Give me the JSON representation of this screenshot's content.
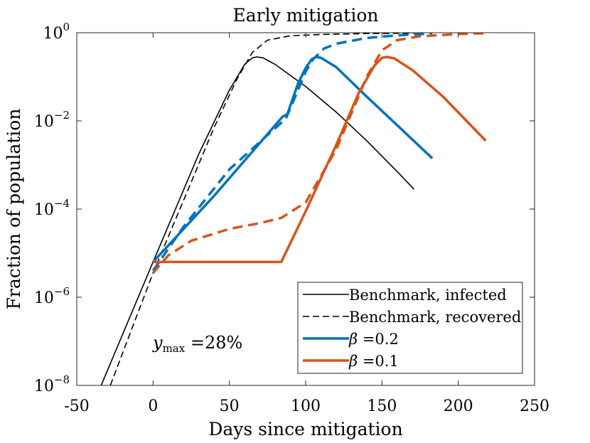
{
  "chart_data": {
    "type": "line",
    "title": "Early mitigation",
    "xlabel": "Days since mitigation",
    "ylabel": "Fraction of population",
    "xlim": [
      -50,
      250
    ],
    "ylim_log10": [
      -8,
      0
    ],
    "x_ticks": [
      -50,
      0,
      50,
      100,
      150,
      200,
      250
    ],
    "x_tick_labels": [
      "-50",
      "0",
      "50",
      "100",
      "150",
      "200",
      "250"
    ],
    "y_ticks": [
      0,
      -2,
      -4,
      -6,
      -8
    ],
    "y_tick_bases": [
      "10",
      "10",
      "10",
      "10",
      "10"
    ],
    "y_tick_exps": [
      "0",
      "−2",
      "−4",
      "−6",
      "−8"
    ],
    "annotation": {
      "var": "y",
      "sub": "max",
      "text": " =28%"
    },
    "legend": {
      "placement": "bottom-right",
      "entries": [
        {
          "label": "Benchmark, infected",
          "color": "#000000",
          "style": "solid",
          "width": 1.6
        },
        {
          "label": "Benchmark, recovered",
          "color": "#000000",
          "style": "dashed",
          "width": 1.6
        },
        {
          "label_var": "β",
          "label_rest": " =0.2",
          "color": "#0072BD",
          "style": "solid",
          "width": 3.5
        },
        {
          "label_var": "β",
          "label_rest": " =0.1",
          "color": "#D95319",
          "style": "solid",
          "width": 3.5
        }
      ]
    },
    "series": [
      {
        "name": "Benchmark, infected",
        "color": "#000000",
        "style": "solid",
        "width": 1.6,
        "points": [
          [
            -34,
            -8.0
          ],
          [
            0,
            -5.2
          ],
          [
            30,
            -2.75
          ],
          [
            50,
            -1.3
          ],
          [
            60,
            -0.72
          ],
          [
            65,
            -0.57
          ],
          [
            68,
            -0.55
          ],
          [
            72,
            -0.57
          ],
          [
            80,
            -0.72
          ],
          [
            100,
            -1.22
          ],
          [
            120,
            -1.8
          ],
          [
            140,
            -2.45
          ],
          [
            160,
            -3.15
          ],
          [
            171,
            -3.55
          ]
        ]
      },
      {
        "name": "Benchmark, recovered",
        "color": "#000000",
        "style": "dashed",
        "width": 1.6,
        "points": [
          [
            -28,
            -8.0
          ],
          [
            0,
            -5.45
          ],
          [
            20,
            -3.8
          ],
          [
            40,
            -2.15
          ],
          [
            55,
            -1.05
          ],
          [
            65,
            -0.45
          ],
          [
            75,
            -0.17
          ],
          [
            90,
            -0.07
          ],
          [
            110,
            -0.04
          ],
          [
            140,
            -0.02
          ],
          [
            171,
            -0.01
          ]
        ]
      },
      {
        "name": "β=0.2, infected",
        "color": "#0072BD",
        "style": "solid",
        "width": 3.5,
        "points": [
          [
            0,
            -5.2
          ],
          [
            40,
            -3.7
          ],
          [
            85,
            -1.9
          ],
          [
            88,
            -1.85
          ],
          [
            95,
            -1.15
          ],
          [
            100,
            -0.8
          ],
          [
            104,
            -0.6
          ],
          [
            107,
            -0.55
          ],
          [
            110,
            -0.57
          ],
          [
            120,
            -0.78
          ],
          [
            140,
            -1.45
          ],
          [
            160,
            -2.1
          ],
          [
            183,
            -2.85
          ]
        ]
      },
      {
        "name": "β=0.2, recovered",
        "color": "#0072BD",
        "style": "dashed",
        "width": 3.5,
        "points": [
          [
            0,
            -5.4
          ],
          [
            20,
            -4.4
          ],
          [
            50,
            -3.1
          ],
          [
            87,
            -1.95
          ],
          [
            95,
            -1.3
          ],
          [
            100,
            -0.88
          ],
          [
            105,
            -0.6
          ],
          [
            112,
            -0.36
          ],
          [
            120,
            -0.25
          ],
          [
            140,
            -0.12
          ],
          [
            160,
            -0.06
          ],
          [
            183,
            -0.02
          ]
        ]
      },
      {
        "name": "β=0.1, infected",
        "color": "#D95319",
        "style": "solid",
        "width": 3.5,
        "points": [
          [
            0,
            -5.2
          ],
          [
            84,
            -5.2
          ],
          [
            100,
            -4.05
          ],
          [
            120,
            -2.55
          ],
          [
            135,
            -1.35
          ],
          [
            145,
            -0.75
          ],
          [
            150,
            -0.57
          ],
          [
            153,
            -0.55
          ],
          [
            158,
            -0.58
          ],
          [
            170,
            -0.85
          ],
          [
            190,
            -1.45
          ],
          [
            218,
            -2.45
          ]
        ]
      },
      {
        "name": "β=0.1, recovered",
        "color": "#D95319",
        "style": "dashed",
        "width": 3.5,
        "points": [
          [
            0,
            -5.45
          ],
          [
            10,
            -5.05
          ],
          [
            25,
            -4.72
          ],
          [
            50,
            -4.45
          ],
          [
            70,
            -4.32
          ],
          [
            84,
            -4.2
          ],
          [
            100,
            -3.85
          ],
          [
            120,
            -2.65
          ],
          [
            140,
            -1.0
          ],
          [
            150,
            -0.4
          ],
          [
            160,
            -0.17
          ],
          [
            175,
            -0.08
          ],
          [
            200,
            -0.03
          ],
          [
            218,
            -0.01
          ]
        ]
      }
    ]
  }
}
